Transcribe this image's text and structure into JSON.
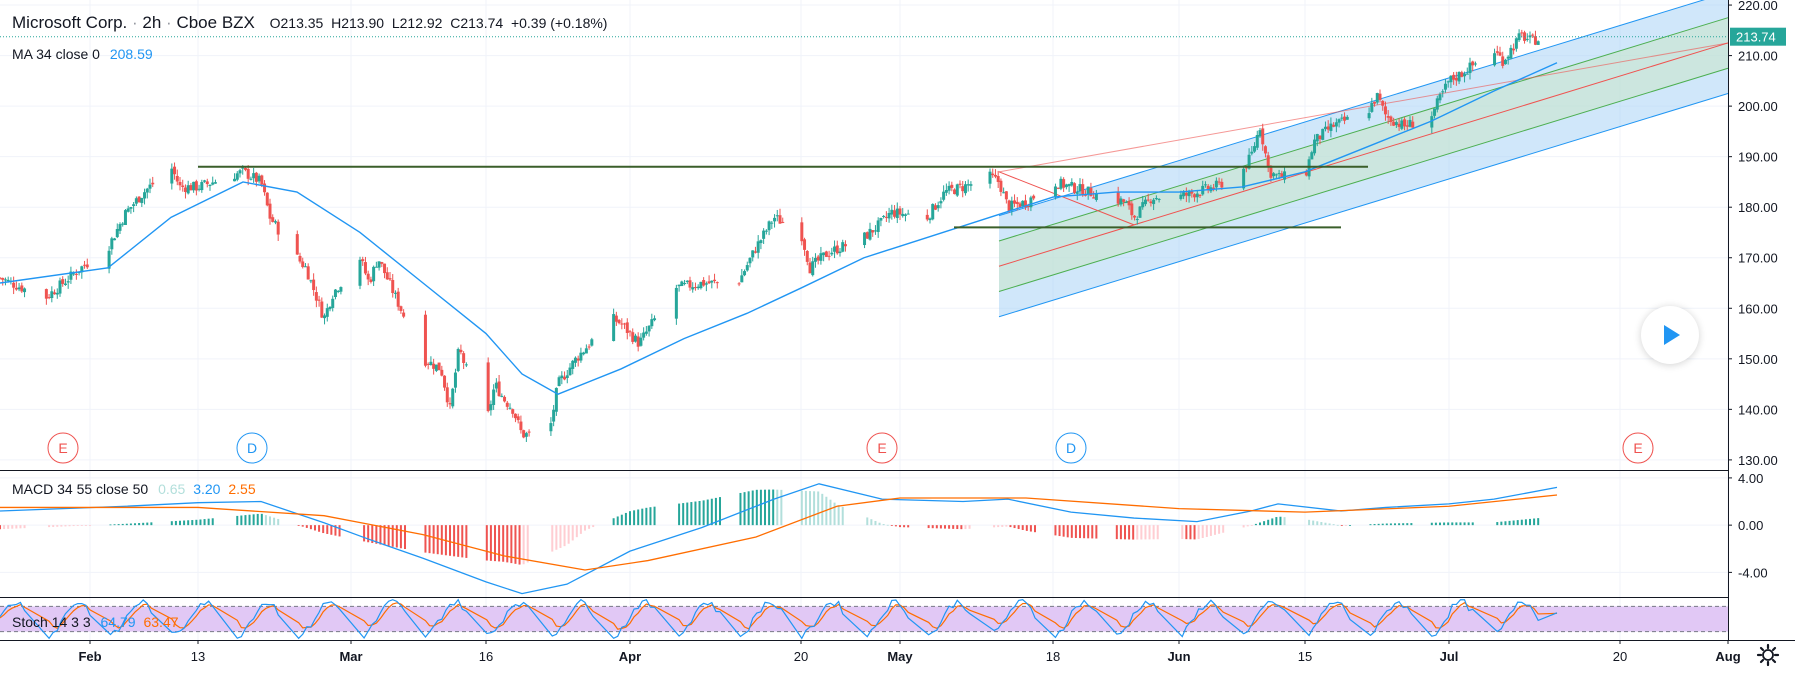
{
  "header": {
    "symbol": "Microsoft Corp.",
    "interval": "2h",
    "exchange": "Cboe BZX",
    "open": "O213.35",
    "high": "H213.90",
    "low": "L212.92",
    "close": "C213.74",
    "change": "+0.39 (+0.18%)"
  },
  "ma_legend": {
    "label": "MA 34 close 0",
    "value": "208.59"
  },
  "macd_legend": {
    "label": "MACD 34 55 close 50",
    "hist": "0.65",
    "macd": "3.20",
    "signal": "2.55"
  },
  "stoch_legend": {
    "label": "Stoch 14 3 3",
    "k": "64.79",
    "d": "63.47"
  },
  "last_price_tag": "213.74",
  "events": [
    {
      "letter": "E",
      "kind": "earnings",
      "date": "2020-01-29"
    },
    {
      "letter": "D",
      "kind": "dividend",
      "date": "2020-02-19"
    },
    {
      "letter": "E",
      "kind": "earnings",
      "date": "2020-04-29"
    },
    {
      "letter": "D",
      "kind": "dividend",
      "date": "2020-05-20"
    },
    {
      "letter": "E",
      "kind": "earnings",
      "date": "2020-07-22"
    }
  ],
  "colors": {
    "up": "#26a69a",
    "down": "#ef5350",
    "ma": "#2196f3",
    "macd": "#2196f3",
    "signal": "#ff6d00",
    "stoch_k": "#2196f3",
    "stoch_d": "#ff6d00",
    "stoch_band": "#e1c8f5",
    "channel_outer": "#a9d4f5",
    "channel_inner": "#c8e6c9",
    "trendline": "#3a5f2a"
  },
  "chart_data": [
    {
      "type": "candlestick",
      "title": "Microsoft Corp. · 2h · Cboe BZX",
      "ylim": [
        128,
        221
      ],
      "y_ticks": [
        "220.00",
        "210.00",
        "200.00",
        "190.00",
        "180.00",
        "170.00",
        "160.00",
        "150.00",
        "140.00",
        "130.00"
      ],
      "x_ticks": [
        "Feb",
        "13",
        "Mar",
        "16",
        "Apr",
        "20",
        "May",
        "18",
        "Jun",
        "15",
        "Jul",
        "20",
        "Aug"
      ],
      "x_tick_dates": [
        "2020-02-01",
        "2020-02-13",
        "2020-03-01",
        "2020-03-16",
        "2020-04-01",
        "2020-04-20",
        "2020-05-01",
        "2020-05-18",
        "2020-06-01",
        "2020-06-15",
        "2020-07-01",
        "2020-07-20",
        "2020-08-01"
      ],
      "x_range": [
        "2020-01-22",
        "2020-08-01"
      ],
      "close_path": [
        [
          "2020-01-22",
          166
        ],
        [
          "2020-01-27",
          162
        ],
        [
          "2020-01-31",
          168
        ],
        [
          "2020-02-03",
          172
        ],
        [
          "2020-02-05",
          179
        ],
        [
          "2020-02-07",
          183
        ],
        [
          "2020-02-10",
          188
        ],
        [
          "2020-02-11",
          184
        ],
        [
          "2020-02-13",
          184
        ],
        [
          "2020-02-18",
          187
        ],
        [
          "2020-02-20",
          185
        ],
        [
          "2020-02-21",
          178
        ],
        [
          "2020-02-24",
          170
        ],
        [
          "2020-02-25",
          168
        ],
        [
          "2020-02-27",
          158
        ],
        [
          "2020-02-28",
          163
        ],
        [
          "2020-03-02",
          170
        ],
        [
          "2020-03-03",
          165
        ],
        [
          "2020-03-04",
          170
        ],
        [
          "2020-03-06",
          162
        ],
        [
          "2020-03-09",
          150
        ],
        [
          "2020-03-11",
          148
        ],
        [
          "2020-03-12",
          140
        ],
        [
          "2020-03-13",
          152
        ],
        [
          "2020-03-16",
          137
        ],
        [
          "2020-03-17",
          145
        ],
        [
          "2020-03-18",
          142
        ],
        [
          "2020-03-19",
          140
        ],
        [
          "2020-03-20",
          135
        ],
        [
          "2020-03-23",
          135
        ],
        [
          "2020-03-24",
          145
        ],
        [
          "2020-03-26",
          150
        ],
        [
          "2020-03-30",
          158
        ],
        [
          "2020-03-31",
          157
        ],
        [
          "2020-04-02",
          153
        ],
        [
          "2020-04-06",
          164
        ],
        [
          "2020-04-09",
          165
        ],
        [
          "2020-04-13",
          165
        ],
        [
          "2020-04-15",
          172
        ],
        [
          "2020-04-17",
          178
        ],
        [
          "2020-04-20",
          175
        ],
        [
          "2020-04-21",
          168
        ],
        [
          "2020-04-23",
          171
        ],
        [
          "2020-04-27",
          174
        ],
        [
          "2020-04-29",
          177
        ],
        [
          "2020-04-30",
          179
        ],
        [
          "2020-05-04",
          178
        ],
        [
          "2020-05-06",
          183
        ],
        [
          "2020-05-08",
          184
        ],
        [
          "2020-05-11",
          186
        ],
        [
          "2020-05-12",
          185
        ],
        [
          "2020-05-13",
          180
        ],
        [
          "2020-05-15",
          181
        ],
        [
          "2020-05-18",
          185
        ],
        [
          "2020-05-20",
          184
        ],
        [
          "2020-05-22",
          183
        ],
        [
          "2020-05-26",
          181
        ],
        [
          "2020-05-27",
          178
        ],
        [
          "2020-05-29",
          182
        ],
        [
          "2020-06-01",
          182
        ],
        [
          "2020-06-03",
          183
        ],
        [
          "2020-06-05",
          184
        ],
        [
          "2020-06-08",
          187
        ],
        [
          "2020-06-09",
          190
        ],
        [
          "2020-06-10",
          196
        ],
        [
          "2020-06-11",
          187
        ],
        [
          "2020-06-12",
          186
        ],
        [
          "2020-06-15",
          186
        ],
        [
          "2020-06-16",
          193
        ],
        [
          "2020-06-18",
          196
        ],
        [
          "2020-06-22",
          199
        ],
        [
          "2020-06-23",
          202
        ],
        [
          "2020-06-24",
          198
        ],
        [
          "2020-06-26",
          196
        ],
        [
          "2020-06-29",
          198
        ],
        [
          "2020-07-01",
          205
        ],
        [
          "2020-07-02",
          206
        ],
        [
          "2020-07-06",
          211
        ],
        [
          "2020-07-07",
          209
        ],
        [
          "2020-07-09",
          214
        ],
        [
          "2020-07-10",
          213
        ],
        [
          "2020-07-13",
          213.74
        ]
      ],
      "ma34_path": [
        [
          "2020-01-22",
          165
        ],
        [
          "2020-02-03",
          168
        ],
        [
          "2020-02-10",
          178
        ],
        [
          "2020-02-18",
          185
        ],
        [
          "2020-02-24",
          183
        ],
        [
          "2020-03-02",
          175
        ],
        [
          "2020-03-09",
          165
        ],
        [
          "2020-03-16",
          155
        ],
        [
          "2020-03-20",
          147
        ],
        [
          "2020-03-24",
          143
        ],
        [
          "2020-03-31",
          148
        ],
        [
          "2020-04-07",
          154
        ],
        [
          "2020-04-14",
          159
        ],
        [
          "2020-04-20",
          164
        ],
        [
          "2020-04-27",
          170
        ],
        [
          "2020-05-04",
          174
        ],
        [
          "2020-05-11",
          178
        ],
        [
          "2020-05-18",
          182
        ],
        [
          "2020-05-25",
          183
        ],
        [
          "2020-06-01",
          183
        ],
        [
          "2020-06-08",
          184
        ],
        [
          "2020-06-15",
          187
        ],
        [
          "2020-06-22",
          192
        ],
        [
          "2020-06-29",
          197
        ],
        [
          "2020-07-06",
          203
        ],
        [
          "2020-07-13",
          208.59
        ]
      ],
      "drawings": {
        "resistance_line": {
          "from": [
            "2020-02-13",
            188
          ],
          "to": [
            "2020-06-22",
            188
          ]
        },
        "support_line": {
          "from": [
            "2020-05-07",
            176
          ],
          "to": [
            "2020-06-19",
            176
          ]
        },
        "pitchfork": {
          "pivot": [
            "2020-05-12",
            187
          ],
          "a": [
            "2020-05-27",
            176.5
          ],
          "median_end": [
            "2020-08-01",
            212.5
          ],
          "channel_offset": 10,
          "inner_offset": 5
        }
      }
    },
    {
      "type": "line",
      "title": "MACD 34 55 close 50",
      "ylim": [
        -6,
        4.5
      ],
      "y_ticks": [
        "4.00",
        "0.00",
        "-4.00"
      ],
      "series": [
        {
          "name": "MACD",
          "values_path": [
            [
              "2020-01-22",
              1.2
            ],
            [
              "2020-02-05",
              1.6
            ],
            [
              "2020-02-13",
              1.9
            ],
            [
              "2020-02-20",
              2.0
            ],
            [
              "2020-02-27",
              0.2
            ],
            [
              "2020-03-03",
              -1.2
            ],
            [
              "2020-03-09",
              -2.8
            ],
            [
              "2020-03-16",
              -4.8
            ],
            [
              "2020-03-20",
              -5.8
            ],
            [
              "2020-03-25",
              -5.0
            ],
            [
              "2020-04-01",
              -2.2
            ],
            [
              "2020-04-09",
              -0.2
            ],
            [
              "2020-04-17",
              2.2
            ],
            [
              "2020-04-22",
              3.5
            ],
            [
              "2020-04-29",
              2.2
            ],
            [
              "2020-05-08",
              2.0
            ],
            [
              "2020-05-13",
              2.2
            ],
            [
              "2020-05-20",
              1.1
            ],
            [
              "2020-05-27",
              0.6
            ],
            [
              "2020-06-03",
              0.3
            ],
            [
              "2020-06-09",
              1.2
            ],
            [
              "2020-06-12",
              1.8
            ],
            [
              "2020-06-19",
              1.2
            ],
            [
              "2020-06-24",
              1.5
            ],
            [
              "2020-07-01",
              1.8
            ],
            [
              "2020-07-06",
              2.2
            ],
            [
              "2020-07-13",
              3.2
            ]
          ]
        },
        {
          "name": "Signal",
          "values_path": [
            [
              "2020-01-22",
              1.5
            ],
            [
              "2020-02-13",
              1.5
            ],
            [
              "2020-02-27",
              0.8
            ],
            [
              "2020-03-09",
              -0.8
            ],
            [
              "2020-03-18",
              -2.6
            ],
            [
              "2020-03-27",
              -3.8
            ],
            [
              "2020-04-03",
              -3.0
            ],
            [
              "2020-04-15",
              -1.0
            ],
            [
              "2020-04-24",
              1.6
            ],
            [
              "2020-05-01",
              2.3
            ],
            [
              "2020-05-15",
              2.3
            ],
            [
              "2020-06-01",
              1.4
            ],
            [
              "2020-06-15",
              1.1
            ],
            [
              "2020-07-01",
              1.6
            ],
            [
              "2020-07-13",
              2.55
            ]
          ]
        }
      ]
    },
    {
      "type": "line",
      "title": "Stoch 14 3 3",
      "ylim": [
        0,
        100
      ],
      "bands": [
        20,
        80
      ],
      "series": [
        {
          "name": "%K",
          "last": 64.79
        },
        {
          "name": "%D",
          "last": 63.47
        }
      ]
    }
  ]
}
